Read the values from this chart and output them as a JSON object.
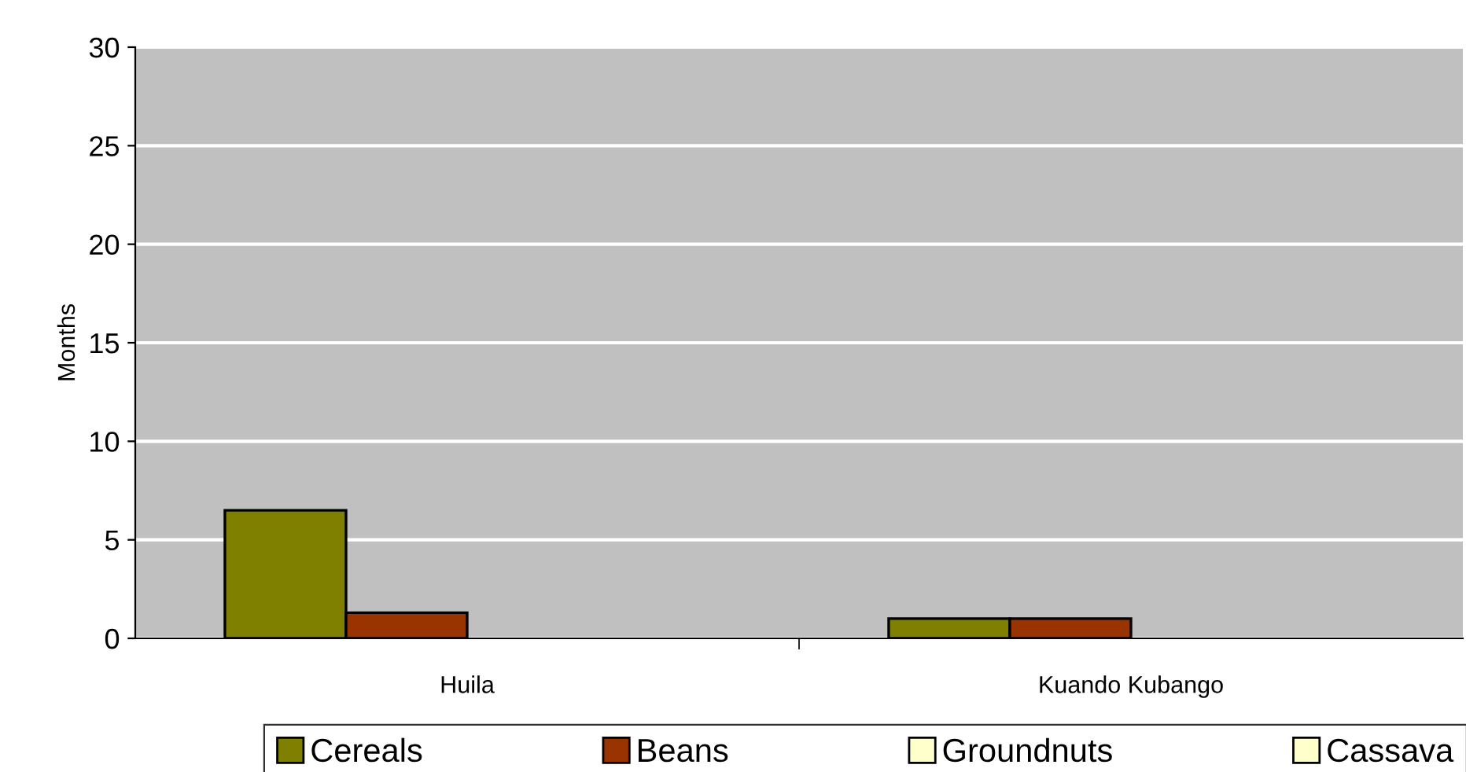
{
  "chart_data": {
    "type": "bar",
    "ylabel": "Months",
    "categories": [
      "Huila",
      "Kuando Kubango"
    ],
    "series": [
      {
        "name": "Cereals",
        "color": "#808000",
        "values": [
          6.5,
          1.0
        ]
      },
      {
        "name": "Beans",
        "color": "#993300",
        "values": [
          1.3,
          1.0
        ]
      },
      {
        "name": "Groundnuts",
        "color": "#ffffcc",
        "values": [
          0,
          0
        ]
      },
      {
        "name": "Cassava",
        "color": "#ffffcc",
        "values": [
          0,
          0
        ]
      }
    ],
    "ylim": [
      0,
      30
    ],
    "yticks": [
      0,
      5,
      10,
      15,
      20,
      25,
      30
    ],
    "grid": "y",
    "legend": "bottom"
  }
}
